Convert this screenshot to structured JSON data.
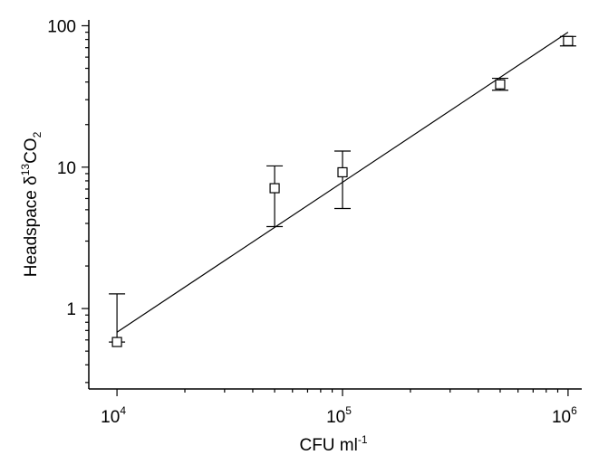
{
  "chart_data": {
    "type": "scatter",
    "title": "",
    "xlabel": "CFU ml",
    "xlabel_sup": "-1",
    "ylabel_main": "Headspace δ",
    "ylabel_sup": "13",
    "ylabel_rest": "CO",
    "ylabel_sub": "2",
    "xscale": "log",
    "yscale": "log",
    "xlim": [
      7500,
      1150000
    ],
    "ylim": [
      0.27,
      110
    ],
    "grid": false,
    "legend": "none",
    "x_ticks": [
      {
        "value": 10000,
        "base": "10",
        "exp": "4"
      },
      {
        "value": 100000,
        "base": "10",
        "exp": "5"
      },
      {
        "value": 1000000,
        "base": "10",
        "exp": "6"
      }
    ],
    "y_ticks": [
      {
        "value": 1,
        "label": "1"
      },
      {
        "value": 10,
        "label": "10"
      },
      {
        "value": 100,
        "label": "100"
      }
    ],
    "series": [
      {
        "marker": "open-square",
        "points": [
          {
            "x": 10000,
            "y": 0.58,
            "err_low": 0.58,
            "err_high": 1.27
          },
          {
            "x": 50000,
            "y": 7.1,
            "err_low": 3.8,
            "err_high": 10.2
          },
          {
            "x": 100000,
            "y": 9.2,
            "err_low": 5.1,
            "err_high": 13.0
          },
          {
            "x": 500000,
            "y": 38.5,
            "err_low": 35.0,
            "err_high": 42.5
          },
          {
            "x": 1000000,
            "y": 78.0,
            "err_low": 72.0,
            "err_high": 84.0
          }
        ]
      }
    ],
    "fit_line": {
      "x": [
        10000,
        1000000
      ],
      "y": [
        0.68,
        90.0
      ]
    }
  }
}
